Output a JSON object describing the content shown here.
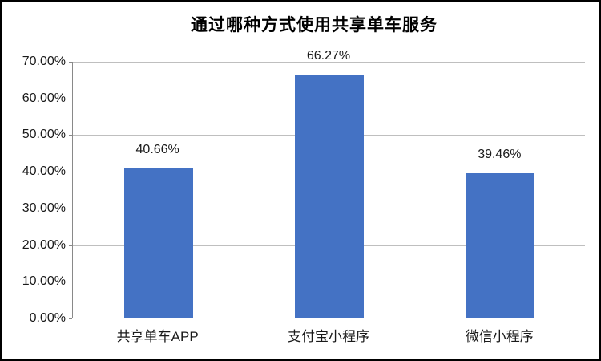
{
  "chart_data": {
    "type": "bar",
    "title": "通过哪种方式使用共享单车服务",
    "categories": [
      "共享单车APP",
      "支付宝小程序",
      "微信小程序"
    ],
    "values": [
      40.66,
      66.27,
      39.46
    ],
    "data_labels": [
      "40.66%",
      "66.27%",
      "39.46%"
    ],
    "xlabel": "",
    "ylabel": "",
    "y_axis": {
      "min": 0,
      "max": 70,
      "step": 10,
      "tick_labels": [
        "0.00%",
        "10.00%",
        "20.00%",
        "30.00%",
        "40.00%",
        "50.00%",
        "60.00%",
        "70.00%"
      ]
    },
    "grid": true,
    "legend_position": "none",
    "colors": {
      "bar": "#4472c4",
      "gridline": "#bfbfbf",
      "axis_line": "#898989",
      "text": "#1a1a1a",
      "title_text": "#000000",
      "background": "#ffffff",
      "frame_border": "#000000"
    }
  }
}
